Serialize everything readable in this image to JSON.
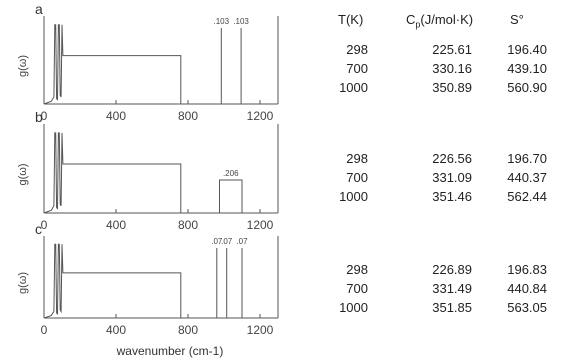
{
  "chart_data": {
    "type": "line",
    "x_axis_label": "wavenumber",
    "x_axis_unit": "(cm-1)",
    "x_ticks": [
      "0",
      "400",
      "800",
      "1200"
    ],
    "xlim": [
      0,
      1300
    ],
    "y_axis_label": "g(ω)",
    "panels": [
      {
        "label": "a",
        "density_of_states": [
          [
            0,
            0
          ],
          [
            40,
            0.03
          ],
          [
            55,
            0.08
          ],
          [
            60,
            0.9
          ],
          [
            65,
            0.9
          ],
          [
            70,
            0.06
          ],
          [
            75,
            0.05
          ],
          [
            80,
            0.9
          ],
          [
            85,
            0.9
          ],
          [
            90,
            0.1
          ],
          [
            95,
            0.08
          ],
          [
            100,
            0.9
          ],
          [
            105,
            0.55
          ],
          [
            760,
            0.55
          ],
          [
            760,
            0
          ]
        ],
        "delta_peaks": [
          {
            "x": 985,
            "label": ".103"
          },
          {
            "x": 1095,
            "label": ".103"
          }
        ]
      },
      {
        "label": "b",
        "density_of_states": [
          [
            0,
            0
          ],
          [
            40,
            0.03
          ],
          [
            55,
            0.08
          ],
          [
            60,
            0.9
          ],
          [
            65,
            0.9
          ],
          [
            70,
            0.06
          ],
          [
            75,
            0.05
          ],
          [
            80,
            0.9
          ],
          [
            85,
            0.9
          ],
          [
            90,
            0.1
          ],
          [
            95,
            0.08
          ],
          [
            100,
            0.9
          ],
          [
            105,
            0.55
          ],
          [
            760,
            0.55
          ],
          [
            760,
            0
          ]
        ],
        "band": {
          "x_start": 975,
          "x_end": 1100,
          "label": ".206"
        }
      },
      {
        "label": "c",
        "density_of_states": [
          [
            0,
            0
          ],
          [
            40,
            0.03
          ],
          [
            55,
            0.08
          ],
          [
            60,
            0.9
          ],
          [
            65,
            0.9
          ],
          [
            70,
            0.06
          ],
          [
            75,
            0.05
          ],
          [
            80,
            0.9
          ],
          [
            85,
            0.9
          ],
          [
            90,
            0.1
          ],
          [
            95,
            0.08
          ],
          [
            100,
            0.9
          ],
          [
            105,
            0.55
          ],
          [
            760,
            0.55
          ],
          [
            760,
            0
          ]
        ],
        "delta_peaks": [
          {
            "x": 960,
            "label": ".07"
          },
          {
            "x": 1015,
            "label": ".07"
          },
          {
            "x": 1100,
            "label": ".07"
          }
        ]
      }
    ]
  },
  "table": {
    "headers": {
      "t": "T(K)",
      "cp_main": "C",
      "cp_sub": "p",
      "cp_unit": "(J/mol·K)",
      "s": "S°"
    },
    "groups": [
      {
        "rows": [
          {
            "t": "298",
            "cp": "225.61",
            "s": "196.40"
          },
          {
            "t": "700",
            "cp": "330.16",
            "s": "439.10"
          },
          {
            "t": "1000",
            "cp": "350.89",
            "s": "560.90"
          }
        ]
      },
      {
        "rows": [
          {
            "t": "298",
            "cp": "226.56",
            "s": "196.70"
          },
          {
            "t": "700",
            "cp": "331.09",
            "s": "440.37"
          },
          {
            "t": "1000",
            "cp": "351.46",
            "s": "562.44"
          }
        ]
      },
      {
        "rows": [
          {
            "t": "298",
            "cp": "226.89",
            "s": "196.83"
          },
          {
            "t": "700",
            "cp": "331.49",
            "s": "440.84"
          },
          {
            "t": "1000",
            "cp": "351.85",
            "s": "563.05"
          }
        ]
      }
    ]
  }
}
